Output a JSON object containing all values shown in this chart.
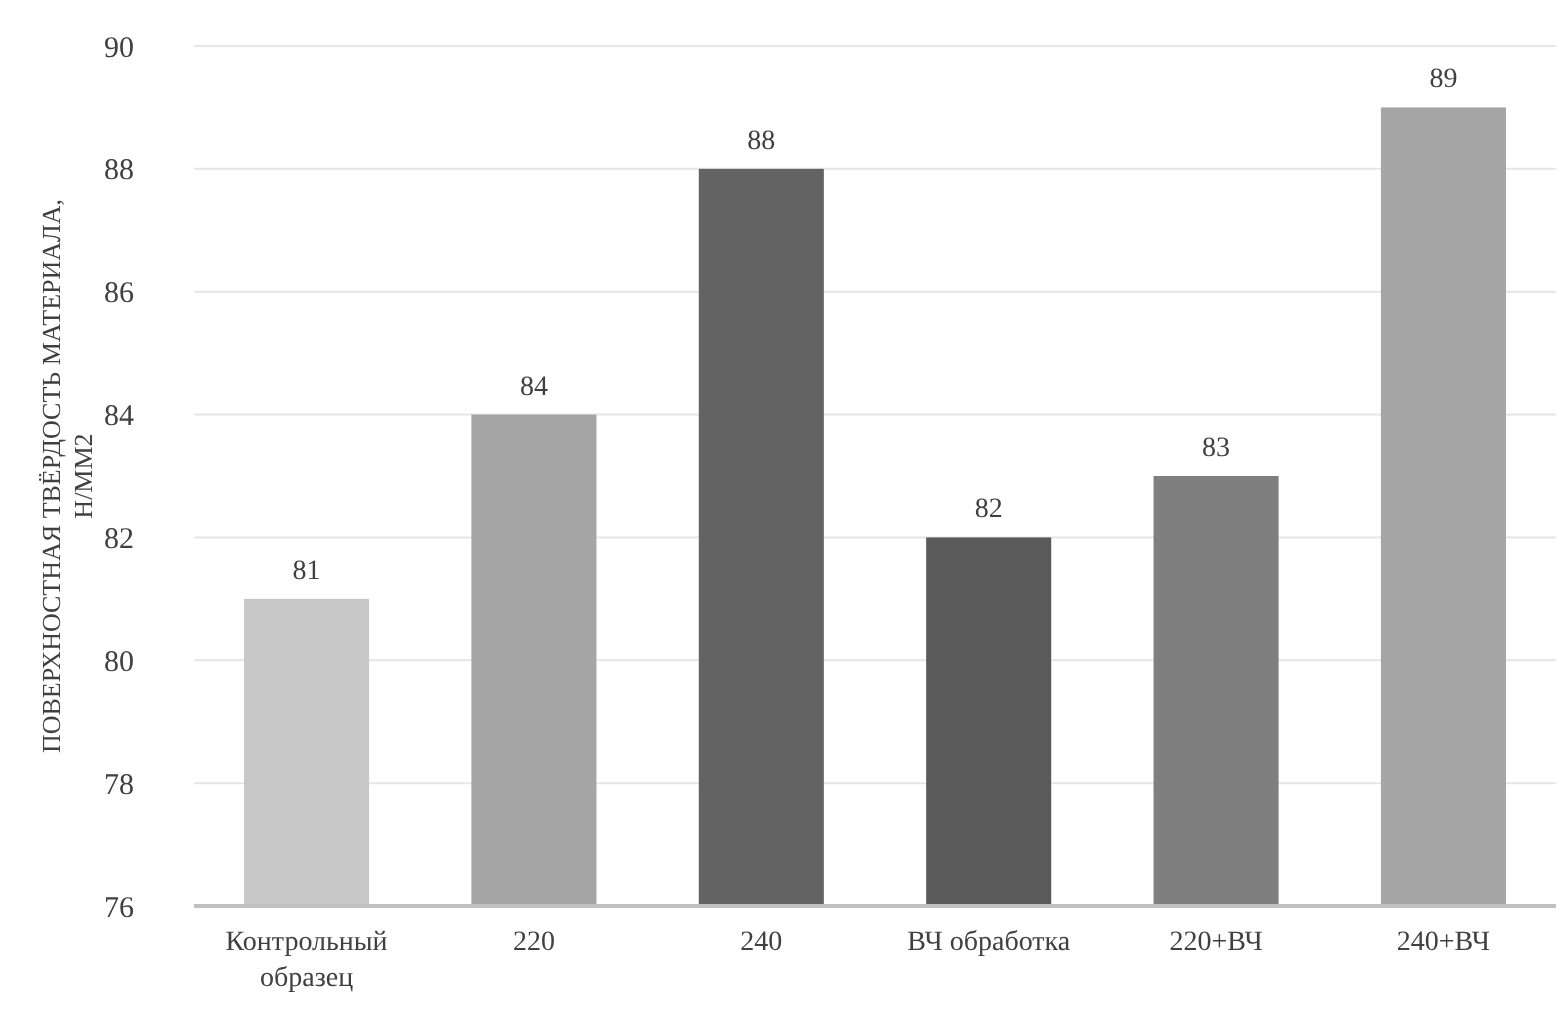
{
  "chart_data": {
    "type": "bar",
    "ylabel": "ПОВЕРХНОСТНАЯ ТВЁРДОСТЬ МАТЕРИАЛА, Н/ММ2",
    "categories": [
      "Контрольный образец",
      "220",
      "240",
      "ВЧ обработка",
      "220+ВЧ",
      "240+ВЧ"
    ],
    "values": [
      81,
      84,
      88,
      82,
      83,
      89
    ],
    "colors": [
      "#c8c8c8",
      "#a5a5a5",
      "#636363",
      "#5a5a5a",
      "#7f7f7f",
      "#a5a5a5"
    ],
    "ylim": [
      76,
      90
    ],
    "yticks": [
      76,
      78,
      80,
      82,
      84,
      86,
      88,
      90
    ],
    "grid": "y",
    "data_labels": true
  }
}
